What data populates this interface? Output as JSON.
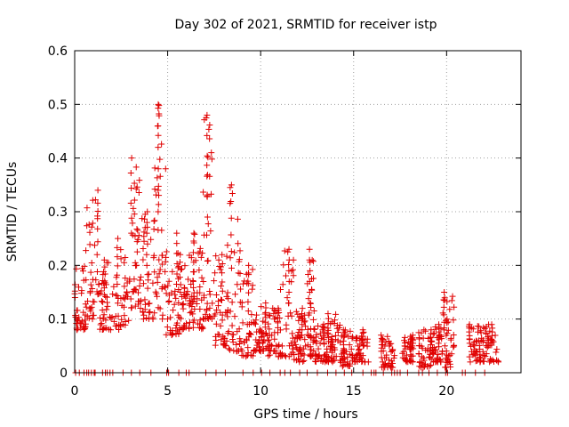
{
  "chart_data": {
    "type": "scatter",
    "title": "Day 302 of 2021, SRMTID for receiver istp",
    "xlabel": "GPS time / hours",
    "ylabel": "SRMTID / TECUs",
    "xlim": [
      0,
      24
    ],
    "ylim": [
      0,
      0.6
    ],
    "x_ticks": [
      0,
      5,
      10,
      15,
      20
    ],
    "y_ticks": [
      0,
      0.1,
      0.2,
      0.3,
      0.4,
      0.5,
      0.6
    ],
    "grid": true,
    "marker": "+",
    "series_color": "#e00000",
    "clusters": [
      {
        "x": [
          0.0,
          0.6
        ],
        "y": [
          0.08,
          0.2
        ]
      },
      {
        "x": [
          0.6,
          1.3
        ],
        "y": [
          0.1,
          0.34
        ]
      },
      {
        "x": [
          1.3,
          2.1
        ],
        "y": [
          0.08,
          0.21
        ]
      },
      {
        "x": [
          2.1,
          3.0
        ],
        "y": [
          0.08,
          0.25
        ]
      },
      {
        "x": [
          3.0,
          3.6
        ],
        "y": [
          0.12,
          0.4
        ]
      },
      {
        "x": [
          3.6,
          4.3
        ],
        "y": [
          0.1,
          0.3
        ]
      },
      {
        "x": [
          4.3,
          4.9
        ],
        "y": [
          0.1,
          0.5
        ]
      },
      {
        "x": [
          4.9,
          5.6
        ],
        "y": [
          0.07,
          0.26
        ]
      },
      {
        "x": [
          5.6,
          6.3
        ],
        "y": [
          0.08,
          0.22
        ]
      },
      {
        "x": [
          6.3,
          6.9
        ],
        "y": [
          0.08,
          0.26
        ]
      },
      {
        "x": [
          6.9,
          7.4
        ],
        "y": [
          0.1,
          0.48
        ]
      },
      {
        "x": [
          7.4,
          8.2
        ],
        "y": [
          0.05,
          0.22
        ]
      },
      {
        "x": [
          8.2,
          8.9
        ],
        "y": [
          0.04,
          0.35
        ]
      },
      {
        "x": [
          8.9,
          9.6
        ],
        "y": [
          0.03,
          0.2
        ]
      },
      {
        "x": [
          9.6,
          10.3
        ],
        "y": [
          0.04,
          0.13
        ]
      },
      {
        "x": [
          10.3,
          11.0
        ],
        "y": [
          0.03,
          0.12
        ]
      },
      {
        "x": [
          11.0,
          11.8
        ],
        "y": [
          0.03,
          0.23
        ]
      },
      {
        "x": [
          11.8,
          12.4
        ],
        "y": [
          0.02,
          0.12
        ]
      },
      {
        "x": [
          12.4,
          12.9
        ],
        "y": [
          0.03,
          0.23
        ]
      },
      {
        "x": [
          12.9,
          13.6
        ],
        "y": [
          0.02,
          0.09
        ]
      },
      {
        "x": [
          13.6,
          14.3
        ],
        "y": [
          0.02,
          0.11
        ]
      },
      {
        "x": [
          14.3,
          15.0
        ],
        "y": [
          0.01,
          0.08
        ]
      },
      {
        "x": [
          15.0,
          15.8
        ],
        "y": [
          0.02,
          0.08
        ]
      },
      {
        "x": [
          16.5,
          17.2
        ],
        "y": [
          0.01,
          0.07
        ]
      },
      {
        "x": [
          17.6,
          18.2
        ],
        "y": [
          0.02,
          0.07
        ]
      },
      {
        "x": [
          18.5,
          19.2
        ],
        "y": [
          0.01,
          0.08
        ]
      },
      {
        "x": [
          19.2,
          19.8
        ],
        "y": [
          0.02,
          0.09
        ]
      },
      {
        "x": [
          19.8,
          20.4
        ],
        "y": [
          0.01,
          0.15
        ]
      },
      {
        "x": [
          21.2,
          21.9
        ],
        "y": [
          0.02,
          0.09
        ]
      },
      {
        "x": [
          21.9,
          22.8
        ],
        "y": [
          0.02,
          0.09
        ]
      }
    ],
    "zero_markers_x": [
      0.05,
      0.25,
      0.5,
      0.65,
      0.75,
      0.9,
      1.05,
      1.1,
      1.5,
      1.65,
      1.75,
      1.9,
      2.05,
      2.6,
      3.05,
      3.5,
      4.1,
      4.95,
      5.05,
      5.6,
      6.0,
      6.15,
      7.05,
      7.6,
      8.1,
      9.05,
      9.6,
      10.05,
      10.5,
      11.05,
      11.3,
      11.6,
      12.1,
      12.5,
      13.05,
      13.6,
      14.05,
      14.5,
      14.9,
      15.5,
      15.95,
      16.1,
      16.2,
      16.6,
      17.05,
      17.2,
      17.35,
      17.5,
      17.9,
      18.5,
      18.7,
      19.05,
      19.5,
      19.95,
      20.05,
      20.85,
      21.0,
      21.55,
      22.05
    ]
  }
}
